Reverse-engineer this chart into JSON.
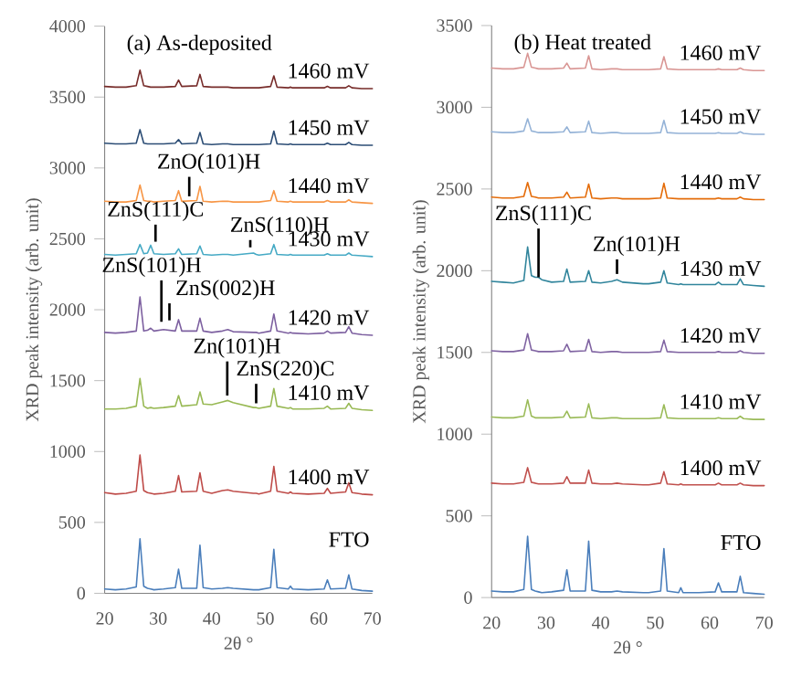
{
  "chart_data": [
    {
      "type": "line",
      "title": "(a) As-deposited",
      "xlabel": "2θ °",
      "ylabel": "XRD peak intensity (arb. unit)",
      "xlim": [
        20,
        70
      ],
      "ylim": [
        0,
        4000
      ],
      "xticks": [
        20,
        30,
        40,
        50,
        60,
        70
      ],
      "yticks": [
        0,
        500,
        1000,
        1500,
        2000,
        2500,
        3000,
        3500,
        4000
      ],
      "x": [
        20,
        22,
        24,
        25.9,
        26.6,
        27.3,
        28.0,
        28.6,
        29.2,
        31,
        33.2,
        33.8,
        34.4,
        37.2,
        37.8,
        38.4,
        40,
        42,
        43,
        44,
        47.8,
        48.3,
        48.8,
        51.0,
        51.6,
        52.2,
        54.3,
        54.7,
        55.1,
        58,
        61.0,
        61.6,
        62.2,
        65.0,
        65.6,
        66.2,
        68,
        70
      ],
      "series": [
        {
          "name": "FTO",
          "color": "#4a7ebb",
          "values": [
            30,
            25,
            30,
            45,
            385,
            50,
            35,
            30,
            25,
            30,
            40,
            170,
            35,
            35,
            340,
            40,
            30,
            35,
            40,
            35,
            25,
            25,
            25,
            40,
            310,
            40,
            30,
            50,
            30,
            25,
            30,
            95,
            30,
            35,
            130,
            30,
            20,
            15
          ]
        },
        {
          "name": "1400 mV",
          "color": "#be4b48",
          "values": [
            710,
            700,
            705,
            720,
            975,
            725,
            710,
            705,
            700,
            705,
            720,
            830,
            715,
            720,
            850,
            720,
            705,
            725,
            730,
            720,
            705,
            705,
            700,
            720,
            895,
            720,
            705,
            715,
            705,
            700,
            705,
            740,
            705,
            715,
            780,
            710,
            700,
            695
          ]
        },
        {
          "name": "1410 mV",
          "color": "#98b954",
          "values": [
            1300,
            1300,
            1305,
            1320,
            1515,
            1320,
            1305,
            1310,
            1305,
            1310,
            1320,
            1395,
            1320,
            1330,
            1420,
            1335,
            1330,
            1350,
            1360,
            1345,
            1310,
            1310,
            1305,
            1320,
            1445,
            1320,
            1305,
            1310,
            1300,
            1300,
            1305,
            1320,
            1300,
            1305,
            1340,
            1305,
            1295,
            1290
          ]
        },
        {
          "name": "1420 mV",
          "color": "#7d60a0",
          "values": [
            1840,
            1835,
            1840,
            1850,
            2090,
            1850,
            1855,
            1870,
            1850,
            1860,
            1850,
            1930,
            1850,
            1850,
            1940,
            1850,
            1840,
            1850,
            1860,
            1845,
            1840,
            1840,
            1835,
            1850,
            1970,
            1850,
            1835,
            1840,
            1835,
            1830,
            1835,
            1850,
            1835,
            1840,
            1880,
            1835,
            1825,
            1820
          ]
        },
        {
          "name": "1430 mV",
          "color": "#46aac5",
          "values": [
            2390,
            2385,
            2390,
            2395,
            2460,
            2395,
            2400,
            2455,
            2395,
            2390,
            2395,
            2430,
            2390,
            2395,
            2450,
            2390,
            2385,
            2390,
            2390,
            2385,
            2400,
            2390,
            2385,
            2395,
            2460,
            2390,
            2385,
            2390,
            2385,
            2385,
            2385,
            2395,
            2385,
            2385,
            2400,
            2385,
            2380,
            2375
          ]
        },
        {
          "name": "1440 mV",
          "color": "#f79646",
          "values": [
            2765,
            2760,
            2760,
            2770,
            2880,
            2770,
            2765,
            2765,
            2760,
            2765,
            2770,
            2840,
            2765,
            2770,
            2870,
            2765,
            2760,
            2765,
            2765,
            2760,
            2760,
            2760,
            2760,
            2770,
            2840,
            2765,
            2760,
            2765,
            2760,
            2760,
            2760,
            2770,
            2760,
            2760,
            2775,
            2760,
            2755,
            2750
          ]
        },
        {
          "name": "1450 mV",
          "color": "#2c4d75",
          "values": [
            3175,
            3170,
            3170,
            3175,
            3270,
            3175,
            3170,
            3170,
            3170,
            3170,
            3175,
            3200,
            3170,
            3175,
            3250,
            3170,
            3165,
            3170,
            3170,
            3165,
            3165,
            3165,
            3165,
            3170,
            3260,
            3170,
            3165,
            3170,
            3165,
            3165,
            3165,
            3175,
            3165,
            3165,
            3180,
            3165,
            3160,
            3160
          ]
        },
        {
          "name": "1460 mV",
          "color": "#772c2a",
          "values": [
            3575,
            3570,
            3570,
            3580,
            3690,
            3580,
            3575,
            3570,
            3570,
            3570,
            3575,
            3620,
            3575,
            3580,
            3660,
            3575,
            3570,
            3570,
            3570,
            3565,
            3565,
            3565,
            3565,
            3575,
            3650,
            3570,
            3565,
            3570,
            3565,
            3565,
            3565,
            3575,
            3565,
            3565,
            3580,
            3565,
            3560,
            3560
          ]
        }
      ],
      "annotations": [
        {
          "text": "ZnO(101)H",
          "x": 35.8,
          "y": 2800
        },
        {
          "text": "ZnS(111)C",
          "x": 29.5,
          "y": 2480
        },
        {
          "text": "ZnS(110)H",
          "x": 47.2,
          "y": 2440
        },
        {
          "text": "ZnS(101)H",
          "x": 30.6,
          "y": 1915
        },
        {
          "text": "ZnS(002)H",
          "x": 32.1,
          "y": 1925
        },
        {
          "text": "Zn(101)H",
          "x": 42.9,
          "y": 1395
        },
        {
          "text": "ZnS(220)C",
          "x": 48.3,
          "y": 1340
        }
      ]
    },
    {
      "type": "line",
      "title": "(b) Heat treated",
      "xlabel": "2θ °",
      "ylabel": "XRD peak intensity (arb. unit)",
      "xlim": [
        20,
        70
      ],
      "ylim": [
        0,
        3500
      ],
      "xticks": [
        20,
        30,
        40,
        50,
        60,
        70
      ],
      "yticks": [
        0,
        500,
        1000,
        1500,
        2000,
        2500,
        3000,
        3500
      ],
      "x": [
        20,
        22,
        24,
        25.9,
        26.6,
        27.3,
        28.0,
        28.6,
        29.2,
        31,
        33.2,
        33.8,
        34.4,
        37.2,
        37.8,
        38.4,
        40,
        42,
        43,
        44,
        47.8,
        48.3,
        48.8,
        51.0,
        51.6,
        52.2,
        54.3,
        54.7,
        55.1,
        58,
        61.0,
        61.6,
        62.2,
        65.0,
        65.6,
        66.2,
        68,
        70
      ],
      "series": [
        {
          "name": "FTO",
          "color": "#4a7ebb",
          "values": [
            40,
            35,
            35,
            50,
            375,
            50,
            40,
            35,
            30,
            35,
            45,
            170,
            40,
            40,
            345,
            45,
            35,
            35,
            40,
            35,
            30,
            30,
            30,
            40,
            300,
            40,
            30,
            60,
            30,
            30,
            35,
            90,
            35,
            35,
            130,
            30,
            25,
            20
          ]
        },
        {
          "name": "1400 mV",
          "color": "#c0504d",
          "values": [
            700,
            695,
            695,
            705,
            795,
            705,
            700,
            695,
            695,
            695,
            700,
            740,
            700,
            700,
            780,
            700,
            695,
            695,
            700,
            695,
            690,
            690,
            690,
            700,
            770,
            695,
            690,
            695,
            690,
            690,
            690,
            700,
            690,
            690,
            700,
            690,
            685,
            685
          ]
        },
        {
          "name": "1410 mV",
          "color": "#9bbb59",
          "values": [
            1105,
            1100,
            1100,
            1110,
            1210,
            1110,
            1100,
            1100,
            1100,
            1100,
            1105,
            1140,
            1100,
            1105,
            1185,
            1100,
            1095,
            1100,
            1100,
            1095,
            1095,
            1095,
            1095,
            1100,
            1180,
            1100,
            1095,
            1095,
            1095,
            1095,
            1095,
            1100,
            1095,
            1095,
            1110,
            1095,
            1090,
            1090
          ]
        },
        {
          "name": "1420 mV",
          "color": "#8064a2",
          "values": [
            1510,
            1505,
            1505,
            1515,
            1615,
            1515,
            1510,
            1505,
            1505,
            1505,
            1510,
            1550,
            1505,
            1510,
            1580,
            1505,
            1500,
            1505,
            1505,
            1500,
            1500,
            1500,
            1500,
            1505,
            1575,
            1505,
            1500,
            1500,
            1500,
            1500,
            1500,
            1505,
            1500,
            1500,
            1510,
            1500,
            1495,
            1495
          ]
        },
        {
          "name": "1430 mV",
          "color": "#31859c",
          "values": [
            1935,
            1930,
            1925,
            1940,
            2145,
            1970,
            1960,
            1960,
            1945,
            1930,
            1935,
            2010,
            1930,
            1935,
            2000,
            1930,
            1925,
            1935,
            1945,
            1930,
            1920,
            1920,
            1920,
            1930,
            2000,
            1925,
            1915,
            1920,
            1915,
            1915,
            1915,
            1930,
            1915,
            1915,
            1950,
            1915,
            1910,
            1905
          ]
        },
        {
          "name": "1440 mV",
          "color": "#e46c0a",
          "values": [
            2450,
            2445,
            2445,
            2455,
            2540,
            2455,
            2450,
            2445,
            2445,
            2445,
            2450,
            2480,
            2445,
            2450,
            2530,
            2445,
            2440,
            2445,
            2445,
            2440,
            2440,
            2440,
            2440,
            2445,
            2535,
            2445,
            2440,
            2440,
            2440,
            2440,
            2440,
            2445,
            2440,
            2440,
            2450,
            2440,
            2435,
            2435
          ]
        },
        {
          "name": "1450 mV",
          "color": "#95b3d7",
          "values": [
            2850,
            2845,
            2845,
            2855,
            2930,
            2855,
            2850,
            2845,
            2845,
            2845,
            2850,
            2880,
            2845,
            2850,
            2915,
            2845,
            2840,
            2845,
            2845,
            2840,
            2840,
            2840,
            2840,
            2845,
            2920,
            2845,
            2840,
            2840,
            2840,
            2840,
            2840,
            2845,
            2840,
            2840,
            2850,
            2840,
            2835,
            2835
          ]
        },
        {
          "name": "1460 mV",
          "color": "#d99694",
          "values": [
            3240,
            3235,
            3235,
            3245,
            3330,
            3245,
            3240,
            3235,
            3235,
            3235,
            3240,
            3270,
            3235,
            3240,
            3315,
            3235,
            3230,
            3235,
            3235,
            3230,
            3230,
            3230,
            3230,
            3235,
            3310,
            3235,
            3230,
            3230,
            3230,
            3230,
            3230,
            3235,
            3230,
            3230,
            3240,
            3230,
            3225,
            3225
          ]
        }
      ],
      "annotations": [
        {
          "text": "ZnS(111)C",
          "x": 28.6,
          "y": 1960
        },
        {
          "text": "Zn(101)H",
          "x": 43.0,
          "y": 1980
        }
      ]
    }
  ]
}
